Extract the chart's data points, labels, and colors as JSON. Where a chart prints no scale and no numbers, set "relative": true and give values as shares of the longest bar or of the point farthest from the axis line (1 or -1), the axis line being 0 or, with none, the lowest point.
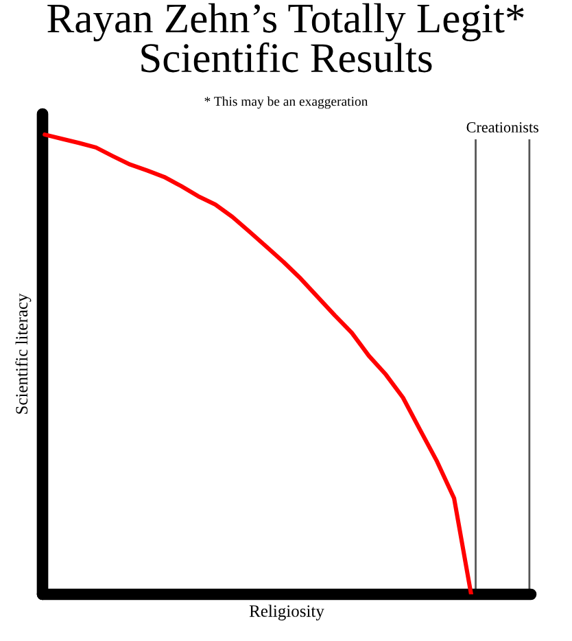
{
  "chart_data": {
    "type": "line",
    "relative": true,
    "title": "Rayan Zehn’s Totally Legit*\nScientific Results",
    "subtitle": "* This may be an exaggeration",
    "xlabel": "Religiosity",
    "ylabel": "Scientific literacy",
    "categories": [
      null,
      null,
      null,
      null,
      null,
      null,
      null,
      null,
      null,
      null,
      null,
      null,
      null,
      null,
      null,
      null,
      null,
      null,
      null,
      null,
      null,
      null,
      null,
      null,
      null,
      null
    ],
    "series": [
      {
        "color": "#ff0000",
        "values": [
          1.0,
          0.991,
          0.982,
          0.972,
          0.953,
          0.935,
          0.922,
          0.908,
          0.888,
          0.866,
          0.848,
          0.821,
          0.789,
          0.756,
          0.723,
          0.687,
          0.647,
          0.607,
          0.569,
          0.519,
          0.478,
          0.428,
          0.358,
          0.289,
          0.209,
          0
        ]
      }
    ],
    "annotations": [
      "Creationists"
    ]
  }
}
